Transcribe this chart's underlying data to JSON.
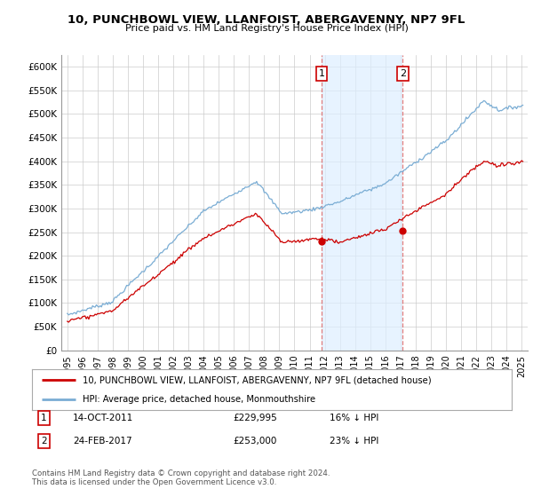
{
  "title": "10, PUNCHBOWL VIEW, LLANFOIST, ABERGAVENNY, NP7 9FL",
  "subtitle": "Price paid vs. HM Land Registry's House Price Index (HPI)",
  "ylabel_ticks": [
    "£0",
    "£50K",
    "£100K",
    "£150K",
    "£200K",
    "£250K",
    "£300K",
    "£350K",
    "£400K",
    "£450K",
    "£500K",
    "£550K",
    "£600K"
  ],
  "ylim": [
    0,
    625000
  ],
  "xlim_start": 1994.6,
  "xlim_end": 2025.4,
  "hpi_color": "#7aadd4",
  "price_color": "#cc0000",
  "marker1_x": 2011.79,
  "marker1_y": 229995,
  "marker2_x": 2017.15,
  "marker2_y": 253000,
  "annotation1_label": "1",
  "annotation1_date": "14-OCT-2011",
  "annotation1_price": "£229,995",
  "annotation1_hpi": "16% ↓ HPI",
  "annotation2_label": "2",
  "annotation2_date": "24-FEB-2017",
  "annotation2_price": "£253,000",
  "annotation2_hpi": "23% ↓ HPI",
  "legend_line1": "10, PUNCHBOWL VIEW, LLANFOIST, ABERGAVENNY, NP7 9FL (detached house)",
  "legend_line2": "HPI: Average price, detached house, Monmouthshire",
  "footer1": "Contains HM Land Registry data © Crown copyright and database right 2024.",
  "footer2": "This data is licensed under the Open Government Licence v3.0.",
  "background_color": "#ffffff",
  "grid_color": "#cccccc",
  "shaded_x1": 2011.79,
  "shaded_x2": 2017.15
}
